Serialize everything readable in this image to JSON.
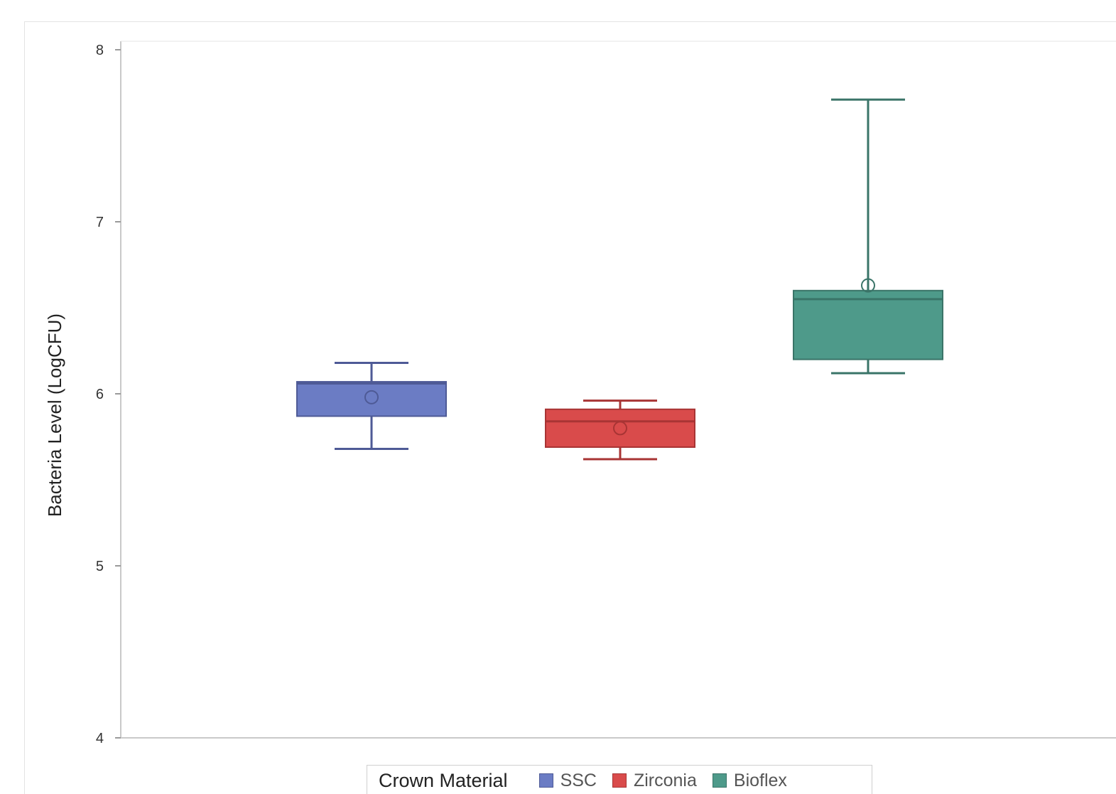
{
  "chart_data": {
    "type": "box",
    "ylabel": "Bacteria Level (LogCFU)",
    "ylim": [
      4,
      8
    ],
    "yticks": [
      "4",
      "5",
      "6",
      "7",
      "8"
    ],
    "grid": false,
    "legend_position": "bottom",
    "legend_title": "Crown Material",
    "series": [
      {
        "name": "SSC",
        "color": "#6b7cc4",
        "whisker_low": 5.68,
        "q1": 5.87,
        "median": 6.06,
        "q3": 6.07,
        "whisker_high": 6.18,
        "mean": 5.98
      },
      {
        "name": "Zirconia",
        "color": "#d94b4b",
        "whisker_low": 5.62,
        "q1": 5.69,
        "median": 5.84,
        "q3": 5.91,
        "whisker_high": 5.96,
        "mean": 5.8
      },
      {
        "name": "Bioflex",
        "color": "#4e9a8a",
        "whisker_low": 6.12,
        "q1": 6.2,
        "median": 6.55,
        "q3": 6.6,
        "whisker_high": 7.71,
        "mean": 6.63
      }
    ]
  }
}
